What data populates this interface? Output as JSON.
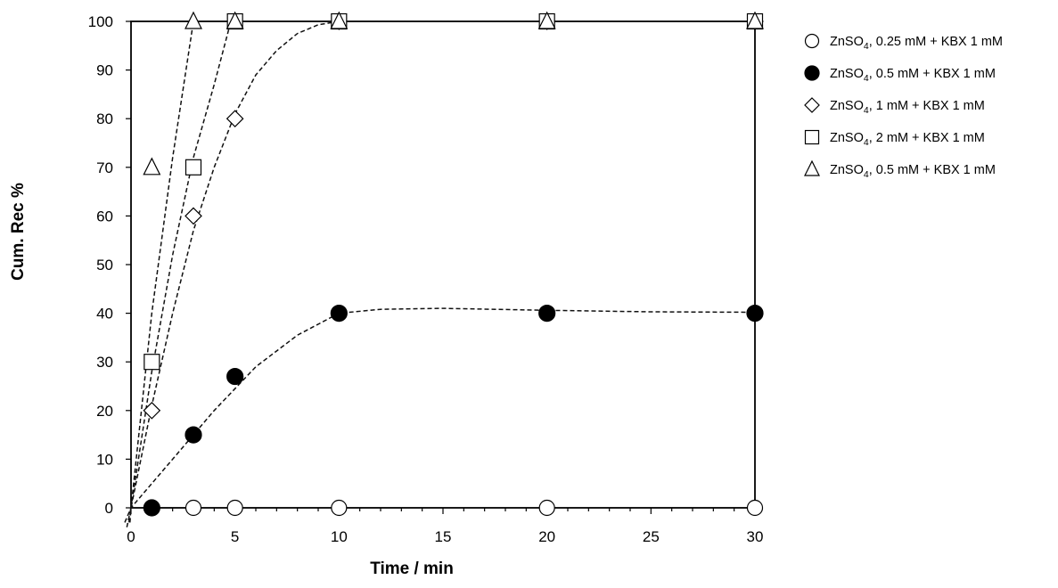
{
  "chart_data": {
    "type": "scatter",
    "title": "",
    "xlabel": "Time / min",
    "ylabel": "Cum. Rec %",
    "xlim": [
      0,
      30
    ],
    "ylim": [
      0,
      100
    ],
    "xticks": [
      0,
      5,
      10,
      15,
      20,
      25,
      30
    ],
    "yticks": [
      0,
      10,
      20,
      30,
      40,
      50,
      60,
      70,
      80,
      90,
      100
    ],
    "grid": false,
    "legend_position": "right",
    "series": [
      {
        "name": "ZnSO4, 0.25 mM + KBX 1 mM",
        "legend_parts": [
          "ZnSO",
          "4",
          ", 0.25 mM + KBX 1 mM"
        ],
        "marker": "circle-open",
        "x": [
          1,
          3,
          5,
          10,
          20,
          30
        ],
        "y": [
          0,
          0,
          0,
          0,
          0,
          0
        ],
        "trend": []
      },
      {
        "name": "ZnSO4, 0.5 mM + KBX 1 mM",
        "legend_parts": [
          "ZnSO",
          "4",
          ",  0.5 mM + KBX 1 mM"
        ],
        "marker": "circle-filled",
        "x": [
          1,
          3,
          5,
          10,
          20,
          30
        ],
        "y": [
          0,
          15,
          27,
          40,
          40,
          40
        ],
        "trend": [
          [
            -0.3,
            -3
          ],
          [
            0,
            0
          ],
          [
            2,
            10
          ],
          [
            4,
            20
          ],
          [
            6,
            29
          ],
          [
            8,
            35.5
          ],
          [
            10,
            40
          ],
          [
            12,
            40.8
          ],
          [
            15,
            41
          ],
          [
            20,
            40.6
          ],
          [
            25,
            40.3
          ],
          [
            30,
            40.2
          ]
        ]
      },
      {
        "name": "ZnSO4, 1 mM + KBX 1 mM",
        "legend_parts": [
          "ZnSO",
          "4",
          ",  1 mM + KBX 1 mM"
        ],
        "marker": "diamond-open",
        "x": [
          1,
          3,
          5,
          10,
          20,
          30
        ],
        "y": [
          20,
          60,
          80,
          100,
          100,
          100
        ],
        "trend": [
          [
            -0.2,
            -4
          ],
          [
            0,
            0
          ],
          [
            1,
            21
          ],
          [
            2,
            40
          ],
          [
            3,
            57
          ],
          [
            4,
            70
          ],
          [
            5,
            81
          ],
          [
            6,
            89
          ],
          [
            7,
            94
          ],
          [
            8,
            97.5
          ],
          [
            9,
            99.3
          ],
          [
            10,
            100
          ],
          [
            30,
            100
          ]
        ]
      },
      {
        "name": "ZnSO4, 2 mM + KBX 1 mM",
        "legend_parts": [
          "ZnSO",
          "4",
          ",  2 mM + KBX 1 mM"
        ],
        "marker": "square-open",
        "x": [
          1,
          3,
          5,
          10,
          20,
          30
        ],
        "y": [
          30,
          70,
          100,
          100,
          100,
          100
        ],
        "trend": [
          [
            -0.1,
            -3
          ],
          [
            0,
            0
          ],
          [
            1,
            28
          ],
          [
            2,
            52
          ],
          [
            3,
            72
          ],
          [
            4,
            87
          ],
          [
            4.8,
            100
          ]
        ]
      },
      {
        "name": "ZnSO4, 0.5 mM + KBX 1 mM",
        "legend_parts": [
          "ZnSO",
          "4",
          ",  0.5 mM + KBX 1 mM"
        ],
        "marker": "triangle-open",
        "x": [
          1,
          3,
          5,
          10,
          20,
          30
        ],
        "y": [
          70,
          100,
          100,
          100,
          100,
          100
        ],
        "trend": [
          [
            -0.05,
            -3
          ],
          [
            0,
            0
          ],
          [
            1,
            40
          ],
          [
            2,
            72
          ],
          [
            3,
            100
          ]
        ]
      }
    ]
  }
}
